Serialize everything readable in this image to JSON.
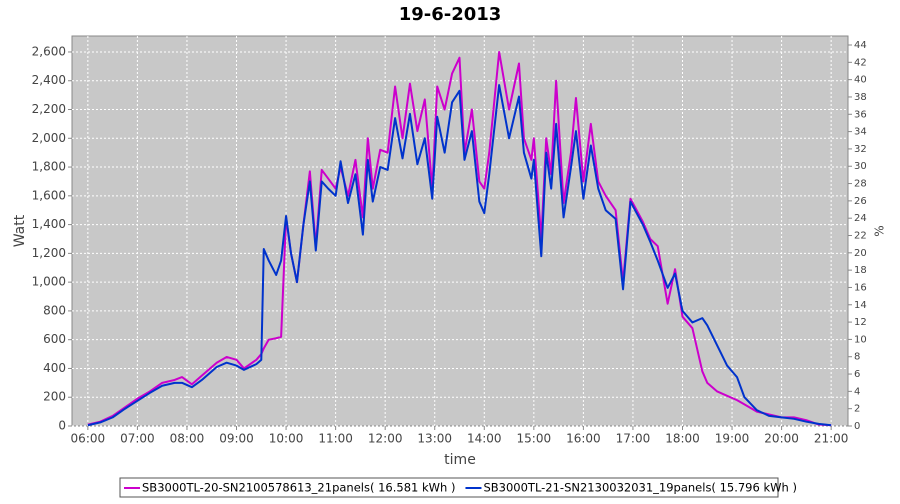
{
  "chart_data": {
    "type": "line",
    "title": "19-6-2013",
    "x_label": "time",
    "y_label": "Watt",
    "y2_label": "%",
    "x": [
      6.0,
      6.25,
      6.5,
      6.75,
      7.0,
      7.25,
      7.5,
      7.75,
      7.9,
      8.1,
      8.3,
      8.6,
      8.8,
      9.0,
      9.15,
      9.4,
      9.5,
      9.55,
      9.65,
      9.8,
      9.9,
      10.0,
      10.1,
      10.22,
      10.35,
      10.48,
      10.6,
      10.72,
      10.85,
      11.0,
      11.1,
      11.25,
      11.4,
      11.55,
      11.65,
      11.75,
      11.9,
      12.05,
      12.2,
      12.35,
      12.5,
      12.65,
      12.8,
      12.95,
      13.05,
      13.2,
      13.35,
      13.5,
      13.6,
      13.75,
      13.9,
      14.0,
      14.1,
      14.3,
      14.5,
      14.7,
      14.8,
      14.95,
      15.0,
      15.15,
      15.25,
      15.35,
      15.45,
      15.6,
      15.75,
      15.85,
      16.0,
      16.15,
      16.3,
      16.45,
      16.65,
      16.8,
      16.95,
      17.2,
      17.35,
      17.5,
      17.7,
      17.85,
      18.0,
      18.2,
      18.4,
      18.5,
      18.7,
      18.9,
      19.1,
      19.25,
      19.5,
      19.75,
      20.0,
      20.25,
      20.5,
      20.75,
      21.0
    ],
    "series": [
      {
        "name": "SB3000TL-20-SN2100578613_21panels( 16.581 kWh )",
        "color": "#cc00cc",
        "values": [
          10,
          30,
          70,
          130,
          190,
          240,
          300,
          320,
          340,
          290,
          350,
          440,
          480,
          460,
          400,
          460,
          500,
          540,
          600,
          610,
          620,
          1450,
          1200,
          1000,
          1400,
          1770,
          1250,
          1780,
          1720,
          1650,
          1800,
          1600,
          1850,
          1450,
          2000,
          1650,
          1920,
          1900,
          2360,
          2000,
          2380,
          2050,
          2270,
          1650,
          2360,
          2200,
          2450,
          2560,
          1900,
          2200,
          1700,
          1650,
          1900,
          2600,
          2200,
          2520,
          2000,
          1850,
          2000,
          1300,
          2000,
          1750,
          2400,
          1550,
          1900,
          2280,
          1700,
          2100,
          1700,
          1600,
          1500,
          1000,
          1580,
          1420,
          1300,
          1250,
          850,
          1090,
          760,
          680,
          380,
          300,
          240,
          210,
          180,
          150,
          100,
          80,
          60,
          60,
          40,
          10,
          5
        ]
      },
      {
        "name": "SB3000TL-21-SN2130032031_19panels( 15.796 kWh )",
        "color": "#0033cc",
        "values": [
          5,
          25,
          60,
          120,
          175,
          230,
          280,
          300,
          300,
          270,
          320,
          410,
          440,
          420,
          390,
          430,
          460,
          1230,
          1150,
          1050,
          1150,
          1460,
          1200,
          1000,
          1400,
          1700,
          1220,
          1700,
          1650,
          1600,
          1840,
          1550,
          1750,
          1330,
          1850,
          1560,
          1800,
          1780,
          2140,
          1860,
          2170,
          1820,
          2000,
          1580,
          2150,
          1900,
          2250,
          2330,
          1850,
          2050,
          1560,
          1480,
          1750,
          2370,
          2000,
          2290,
          1900,
          1720,
          1850,
          1180,
          1900,
          1650,
          2100,
          1450,
          1800,
          2050,
          1580,
          1950,
          1650,
          1500,
          1440,
          950,
          1560,
          1400,
          1280,
          1150,
          960,
          1060,
          800,
          720,
          750,
          700,
          560,
          420,
          340,
          200,
          110,
          70,
          60,
          50,
          30,
          15,
          5
        ]
      }
    ],
    "xlim": [
      5.68,
      21.34
    ],
    "xticks": [
      {
        "value": 6,
        "label": "06:00"
      },
      {
        "value": 7,
        "label": "07:00"
      },
      {
        "value": 8,
        "label": "08:00"
      },
      {
        "value": 9,
        "label": "09:00"
      },
      {
        "value": 10,
        "label": "10:00"
      },
      {
        "value": 11,
        "label": "11:00"
      },
      {
        "value": 12,
        "label": "12:00"
      },
      {
        "value": 13,
        "label": "13:00"
      },
      {
        "value": 14,
        "label": "14:00"
      },
      {
        "value": 15,
        "label": "15:00"
      },
      {
        "value": 16,
        "label": "16:00"
      },
      {
        "value": 17,
        "label": "17:00"
      },
      {
        "value": 18,
        "label": "18:00"
      },
      {
        "value": 19,
        "label": "19:00"
      },
      {
        "value": 20,
        "label": "20:00"
      },
      {
        "value": 21,
        "label": "21:00"
      }
    ],
    "ylim": [
      0,
      2711
    ],
    "yticks": [
      0,
      200,
      400,
      600,
      800,
      {
        "value": 1000,
        "label": "1,000"
      },
      {
        "value": 1200,
        "label": "1,200"
      },
      {
        "value": 1400,
        "label": "1,400"
      },
      {
        "value": 1600,
        "label": "1,600"
      },
      {
        "value": 1800,
        "label": "1,800"
      },
      {
        "value": 2000,
        "label": "2,000"
      },
      {
        "value": 2200,
        "label": "2,200"
      },
      {
        "value": 2400,
        "label": "2,400"
      },
      {
        "value": 2600,
        "label": "2,600"
      }
    ],
    "y2lim": [
      0,
      45.04
    ],
    "y2ticks": [
      0,
      2,
      4,
      6,
      8,
      10,
      12,
      14,
      16,
      18,
      20,
      22,
      24,
      26,
      28,
      30,
      32,
      34,
      36,
      38,
      40,
      42,
      44
    ],
    "grid": true
  }
}
